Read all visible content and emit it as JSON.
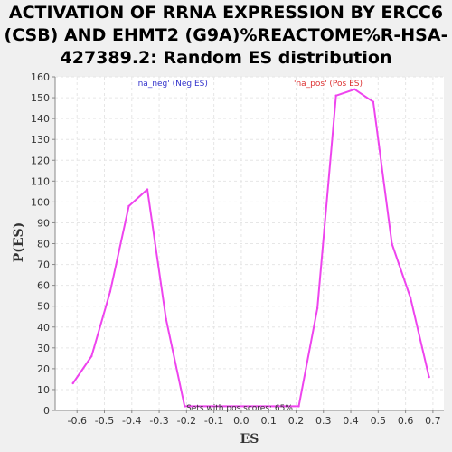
{
  "chart_data": {
    "type": "line",
    "title_lines": [
      "ACTIVATION OF RRNA EXPRESSION BY ERCC6",
      "(CSB) AND EHMT2 (G9A)%REACTOME%R-HSA-",
      "427389.2: Random ES distribution"
    ],
    "xlabel": "ES",
    "ylabel": "P(ES)",
    "xlim": [
      -0.68,
      0.74
    ],
    "ylim": [
      0,
      160
    ],
    "xticks": [
      -0.6,
      -0.5,
      -0.4,
      -0.3,
      -0.2,
      -0.1,
      0.0,
      0.1,
      0.2,
      0.3,
      0.4,
      0.5,
      0.6,
      0.7
    ],
    "xtick_labels": [
      "-0.6",
      "-0.5",
      "-0.4",
      "-0.3",
      "-0.2",
      "-0.1",
      "0.0",
      "0.1",
      "0.2",
      "0.3",
      "0.4",
      "0.5",
      "0.6",
      "0.7"
    ],
    "yticks": [
      0,
      10,
      20,
      30,
      40,
      50,
      60,
      70,
      80,
      90,
      100,
      110,
      120,
      130,
      140,
      150,
      160
    ],
    "grid": true,
    "series": [
      {
        "color": "#ee44ee",
        "x": [
          -0.615,
          -0.547,
          -0.479,
          -0.411,
          -0.343,
          -0.275,
          -0.207,
          0.21,
          0.278,
          0.346,
          0.414,
          0.482,
          0.55,
          0.618,
          0.686
        ],
        "y": [
          13,
          26,
          57,
          98,
          106,
          44,
          2,
          2,
          49,
          151,
          154,
          148,
          80,
          54,
          16
        ]
      }
    ],
    "legend": [
      {
        "text": "'na_neg' (Neg ES)",
        "color": "#3333cc"
      },
      {
        "text": "'na_pos' (Pos ES)",
        "color": "#dd3333"
      }
    ],
    "annotation": "Sets with pos scores: 65%"
  }
}
